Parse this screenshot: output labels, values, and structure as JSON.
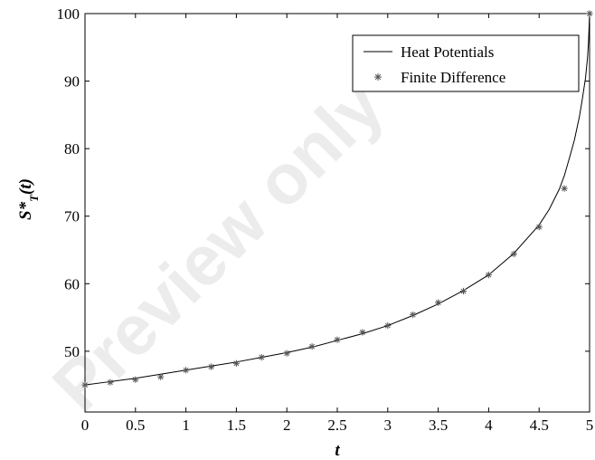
{
  "chart_data": {
    "type": "line",
    "xlabel": "t",
    "ylabel": "S*T(t)",
    "xlim": [
      0,
      5
    ],
    "ylim": [
      41,
      100
    ],
    "xticks": [
      "0",
      "0.5",
      "1",
      "1.5",
      "2",
      "2.5",
      "3",
      "3.5",
      "4",
      "4.5",
      "5"
    ],
    "yticks": [
      "50",
      "60",
      "70",
      "80",
      "90",
      "100"
    ],
    "grid": false,
    "legend_position": "top-right",
    "watermark": "Preview only",
    "series": [
      {
        "name": "Heat Potentials",
        "style": "line",
        "color": "#000000",
        "x": [
          0,
          0.25,
          0.5,
          0.75,
          1,
          1.25,
          1.5,
          1.75,
          2,
          2.25,
          2.5,
          2.75,
          3,
          3.25,
          3.5,
          3.75,
          4,
          4.25,
          4.5,
          4.6,
          4.7,
          4.75,
          4.8,
          4.85,
          4.9,
          4.93,
          4.96,
          4.98,
          4.99,
          5
        ],
        "y": [
          45,
          45.5,
          46,
          46.6,
          47.2,
          47.8,
          48.4,
          49.1,
          49.8,
          50.6,
          51.6,
          52.6,
          53.8,
          55.3,
          57.0,
          59.0,
          61.3,
          64.5,
          68.7,
          71.0,
          74.0,
          76.0,
          78.6,
          81.3,
          84.8,
          87.5,
          90.5,
          93.5,
          96.0,
          100
        ]
      },
      {
        "name": "Finite Difference",
        "style": "marker",
        "marker": "*",
        "color": "#555555",
        "x": [
          0,
          0.25,
          0.5,
          0.75,
          1,
          1.25,
          1.5,
          1.75,
          2,
          2.25,
          2.5,
          2.75,
          3,
          3.25,
          3.5,
          3.75,
          4,
          4.25,
          4.5,
          4.75,
          5
        ],
        "y": [
          45,
          45.4,
          45.8,
          46.2,
          47.2,
          47.7,
          48.2,
          49.1,
          49.7,
          50.7,
          51.7,
          52.8,
          53.8,
          55.4,
          57.2,
          58.9,
          61.3,
          64.4,
          68.4,
          74.1,
          100
        ]
      }
    ]
  }
}
